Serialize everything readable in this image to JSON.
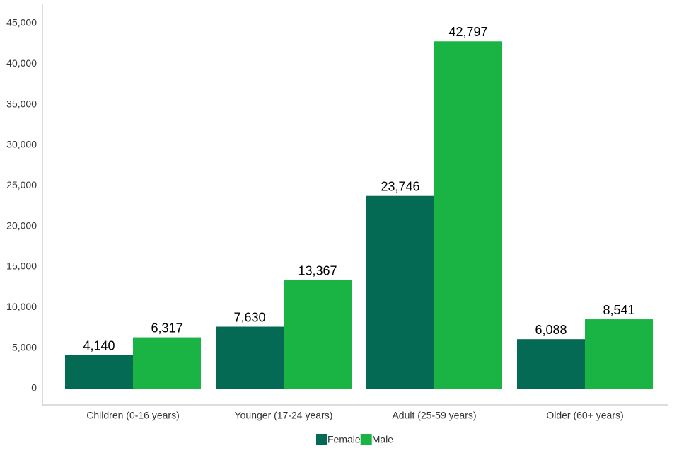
{
  "chart_data": {
    "type": "bar",
    "categories": [
      "Children (0-16 years)",
      "Younger (17-24 years)",
      "Adult (25-59 years)",
      "Older (60+ years)"
    ],
    "series": [
      {
        "name": "Female",
        "color": "#046a53",
        "values": [
          4140,
          7630,
          23746,
          6088
        ],
        "value_labels": [
          "4,140",
          "7,630",
          "23,746",
          "6,088"
        ]
      },
      {
        "name": "Male",
        "color": "#19b443",
        "values": [
          6317,
          13367,
          42797,
          8541
        ],
        "value_labels": [
          "6,317",
          "13,367",
          "42,797",
          "8,541"
        ]
      }
    ],
    "ylim": [
      0,
      45000
    ],
    "yticks": [
      0,
      {
        "value": 5000,
        "label": "5,000"
      },
      {
        "value": 10000,
        "label": "10,000"
      },
      {
        "value": 15000,
        "label": "15,000"
      },
      {
        "value": 20000,
        "label": "20,000"
      },
      {
        "value": 25000,
        "label": "25,000"
      },
      {
        "value": 30000,
        "label": "30,000"
      },
      {
        "value": 35000,
        "label": "35,000"
      },
      {
        "value": 40000,
        "label": "40,000"
      },
      {
        "value": 45000,
        "label": "45,000"
      }
    ],
    "grid": false,
    "legend": "bottom"
  }
}
